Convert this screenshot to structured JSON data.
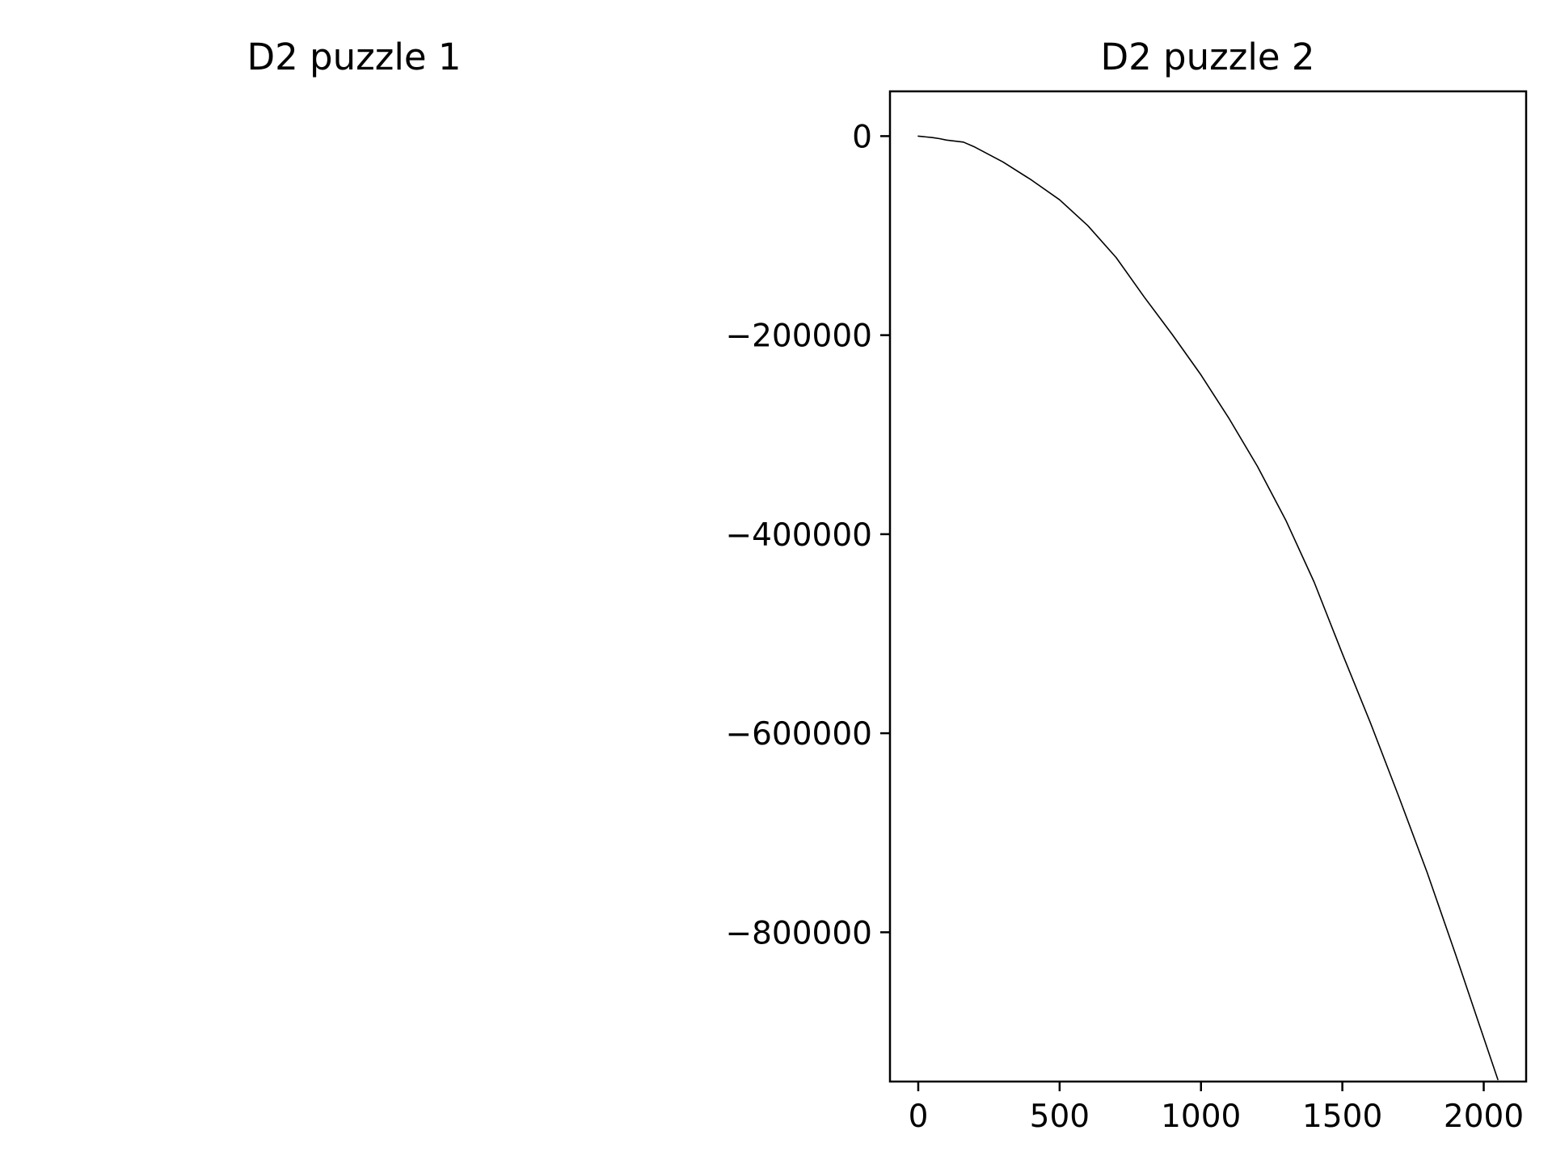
{
  "chart_data": [
    {
      "type": "line",
      "title": "D2 puzzle 1",
      "xlabel": "",
      "ylabel": "",
      "axes_visible": false,
      "series": []
    },
    {
      "type": "line",
      "title": "D2 puzzle 2",
      "xlabel": "",
      "ylabel": "",
      "xlim": [
        -100,
        2150
      ],
      "ylim": [
        -950000,
        45000
      ],
      "grid": false,
      "xticks": [
        0,
        500,
        1000,
        1500,
        2000
      ],
      "xtick_labels": [
        "0",
        "500",
        "1000",
        "1500",
        "2000"
      ],
      "yticks": [
        0,
        -200000,
        -400000,
        -600000,
        -800000
      ],
      "ytick_labels": [
        "0",
        "−200000",
        "−400000",
        "−600000",
        "−800000"
      ],
      "series": [
        {
          "color": "#000000",
          "x": [
            0,
            50,
            75,
            100,
            160,
            200,
            300,
            400,
            500,
            600,
            700,
            800,
            900,
            1000,
            1100,
            1200,
            1300,
            1400,
            1500,
            1600,
            1700,
            1800,
            1900,
            2000,
            2050
          ],
          "y": [
            0,
            -1500,
            -2500,
            -4000,
            -6000,
            -11000,
            -26000,
            -44000,
            -64000,
            -90000,
            -122000,
            -162000,
            -200000,
            -240000,
            -284000,
            -332000,
            -386000,
            -448000,
            -520000,
            -590000,
            -664000,
            -740000,
            -822000,
            -906000,
            -948000
          ]
        }
      ]
    }
  ]
}
